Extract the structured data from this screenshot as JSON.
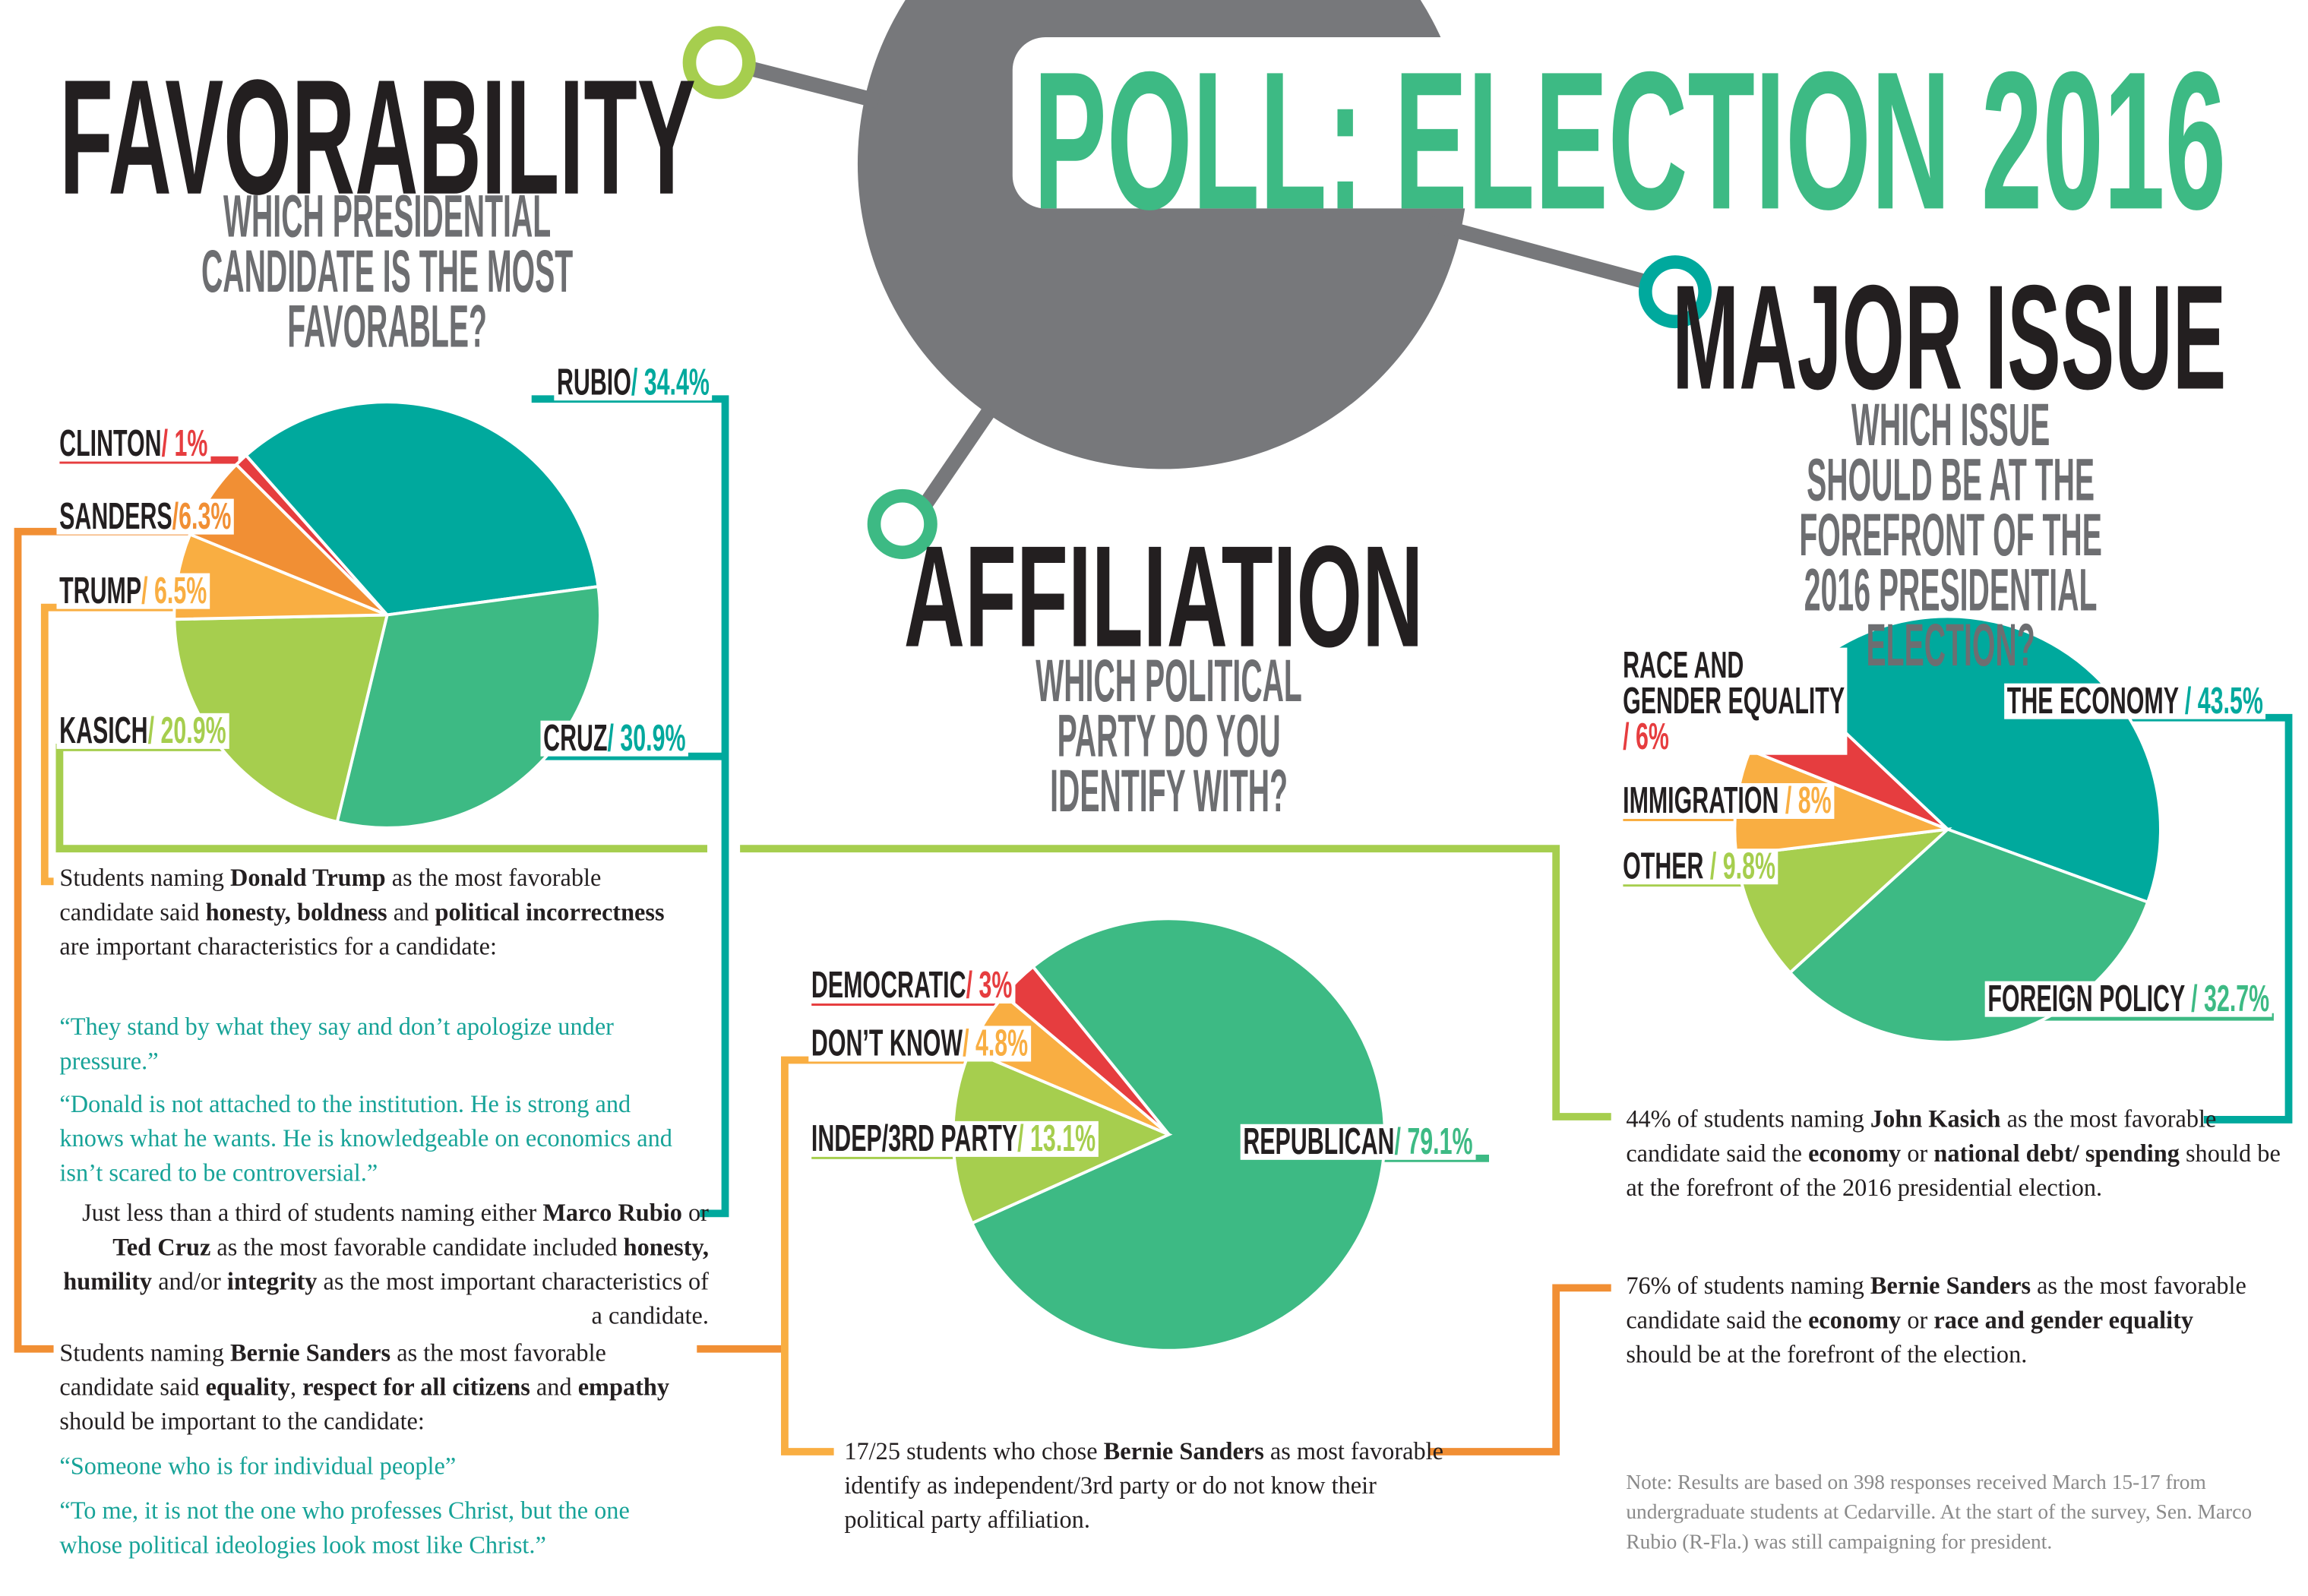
{
  "title": "POLL: ELECTION 2016",
  "colors": {
    "teal": "#00a99d",
    "green": "#3dba84",
    "lime": "#a6ce4e",
    "light_orange": "#f9ae42",
    "orange": "#f18f34",
    "red": "#e63d3f",
    "gray": "#77787b"
  },
  "favorability": {
    "heading": "FAVORABILITY",
    "question": "WHICH PRESIDENTIAL CANDIDATE IS THE MOST FAVORABLE?",
    "labels": [
      {
        "name": "RUBIO",
        "value": "/ 34.4%"
      },
      {
        "name": "CLINTON",
        "value": "/ 1%"
      },
      {
        "name": "SANDERS",
        "value": "/6.3%"
      },
      {
        "name": "TRUMP",
        "value": "/ 6.5%"
      },
      {
        "name": "KASICH",
        "value": "/ 20.9%"
      },
      {
        "name": "CRUZ",
        "value": "/ 30.9%"
      }
    ],
    "trump_text": [
      [
        "Students naming ",
        false
      ],
      [
        "Donald Trump",
        true
      ],
      [
        " as the most favorable candidate said ",
        false
      ],
      [
        "honesty, boldness",
        true
      ],
      [
        " and ",
        false
      ],
      [
        "political incorrectness",
        true
      ],
      [
        " are important characteristics for a candidate:",
        false
      ]
    ],
    "trump_quotes": [
      "“They stand by what they say and don’t apologize under pressure.”",
      "“Donald is not attached to the institution. He is strong and knows what he wants. He is knowledgeable on economics and isn’t scared to be controversial.”"
    ],
    "rubio_cruz_text": [
      [
        "Just less than a third of students naming either ",
        false
      ],
      [
        "Marco Rubio",
        true
      ],
      [
        " or ",
        false
      ],
      [
        "Ted Cruz",
        true
      ],
      [
        " as the most favorable candidate included ",
        false
      ],
      [
        "honesty, humility",
        true
      ],
      [
        " and/or ",
        false
      ],
      [
        "integrity",
        true
      ],
      [
        " as the most important characteristics of a candidate.",
        false
      ]
    ],
    "sanders_text": [
      [
        "Students naming ",
        false
      ],
      [
        "Bernie Sanders",
        true
      ],
      [
        " as the most favorable candidate said ",
        false
      ],
      [
        "equality",
        true
      ],
      [
        ", ",
        false
      ],
      [
        "respect for all citizens",
        true
      ],
      [
        " and ",
        false
      ],
      [
        "empathy",
        true
      ],
      [
        " should be important to the candidate:",
        false
      ]
    ],
    "sanders_quotes": [
      "“Someone who is for individual people”",
      "“To me, it is not the one who professes Christ, but the one whose political ideologies look most like Christ.”"
    ]
  },
  "affiliation": {
    "heading": "AFFILIATION",
    "question": "WHICH POLITICAL PARTY DO YOU IDENTIFY WITH?",
    "labels": [
      {
        "name": "DEMOCRATIC",
        "value": "/ 3%"
      },
      {
        "name": "DON’T KNOW",
        "value": "/ 4.8%"
      },
      {
        "name": "INDEP/3RD PARTY",
        "value": "/ 13.1%"
      },
      {
        "name": "REPUBLICAN",
        "value": "/ 79.1%"
      }
    ],
    "sanders_text": [
      [
        "17/25 students who chose ",
        false
      ],
      [
        "Bernie Sanders",
        true
      ],
      [
        " as most favorable identify as independent/3rd party or do not know their political party affiliation.",
        false
      ]
    ]
  },
  "major_issue": {
    "heading": "MAJOR ISSUE",
    "question": "WHICH ISSUE SHOULD BE AT THE FOREFRONT OF THE 2016 PRESIDENTIAL ELECTION?",
    "labels": [
      {
        "name": "RACE AND GENDER EQUALITY",
        "value": "/ 6%"
      },
      {
        "name": "THE ECONOMY",
        "value": "/ 43.5%"
      },
      {
        "name": "IMMIGRATION",
        "value": "/ 8%"
      },
      {
        "name": "OTHER",
        "value": "/ 9.8%"
      },
      {
        "name": "FOREIGN POLICY",
        "value": "/ 32.7%"
      }
    ],
    "kasich_text": [
      [
        "44% of students naming ",
        false
      ],
      [
        "John Kasich",
        true
      ],
      [
        " as the most favorable candidate said the ",
        false
      ],
      [
        "economy",
        true
      ],
      [
        " or ",
        false
      ],
      [
        "national debt/ spending",
        true
      ],
      [
        " should be at the forefront of the 2016 presidential election.",
        false
      ]
    ],
    "sanders_text": [
      [
        "76% of students naming ",
        false
      ],
      [
        "Bernie Sanders",
        true
      ],
      [
        " as the most favorable candidate said the ",
        false
      ],
      [
        "economy",
        true
      ],
      [
        " or ",
        false
      ],
      [
        "race and gender equality",
        true
      ],
      [
        " should be at the forefront of the election.",
        false
      ]
    ]
  },
  "note": "Note: Results are based on 398 responses received March 15-17 from undergraduate students at Cedarville. At the start of the survey, Sen. Marco Rubio (R-Fla.) was still campaigning for president.",
  "chart_data": [
    {
      "type": "pie",
      "title": "FAVORABILITY",
      "start_angle_deg": -41.5,
      "categories": [
        "Rubio",
        "Cruz",
        "Kasich",
        "Trump",
        "Sanders",
        "Clinton"
      ],
      "values": [
        34.4,
        30.9,
        20.9,
        6.5,
        6.3,
        1
      ],
      "colors": [
        "#00a99d",
        "#3dba84",
        "#a6ce4e",
        "#f9ae42",
        "#f18f34",
        "#e63d3f"
      ]
    },
    {
      "type": "pie",
      "title": "AFFILIATION",
      "start_angle_deg": -39,
      "categories": [
        "Republican",
        "Indep/3rd Party",
        "Don't Know",
        "Democratic"
      ],
      "values": [
        79.1,
        13.1,
        4.8,
        3
      ],
      "colors": [
        "#3dba84",
        "#a6ce4e",
        "#f9ae42",
        "#e63d3f"
      ]
    },
    {
      "type": "pie",
      "title": "MAJOR ISSUE",
      "start_angle_deg": -46.6,
      "categories": [
        "The Economy",
        "Foreign Policy",
        "Other",
        "Immigration",
        "Race and Gender Equality"
      ],
      "values": [
        43.5,
        32.7,
        9.8,
        8,
        6
      ],
      "colors": [
        "#00a99d",
        "#3dba84",
        "#a6ce4e",
        "#f9ae42",
        "#e63d3f"
      ]
    }
  ]
}
